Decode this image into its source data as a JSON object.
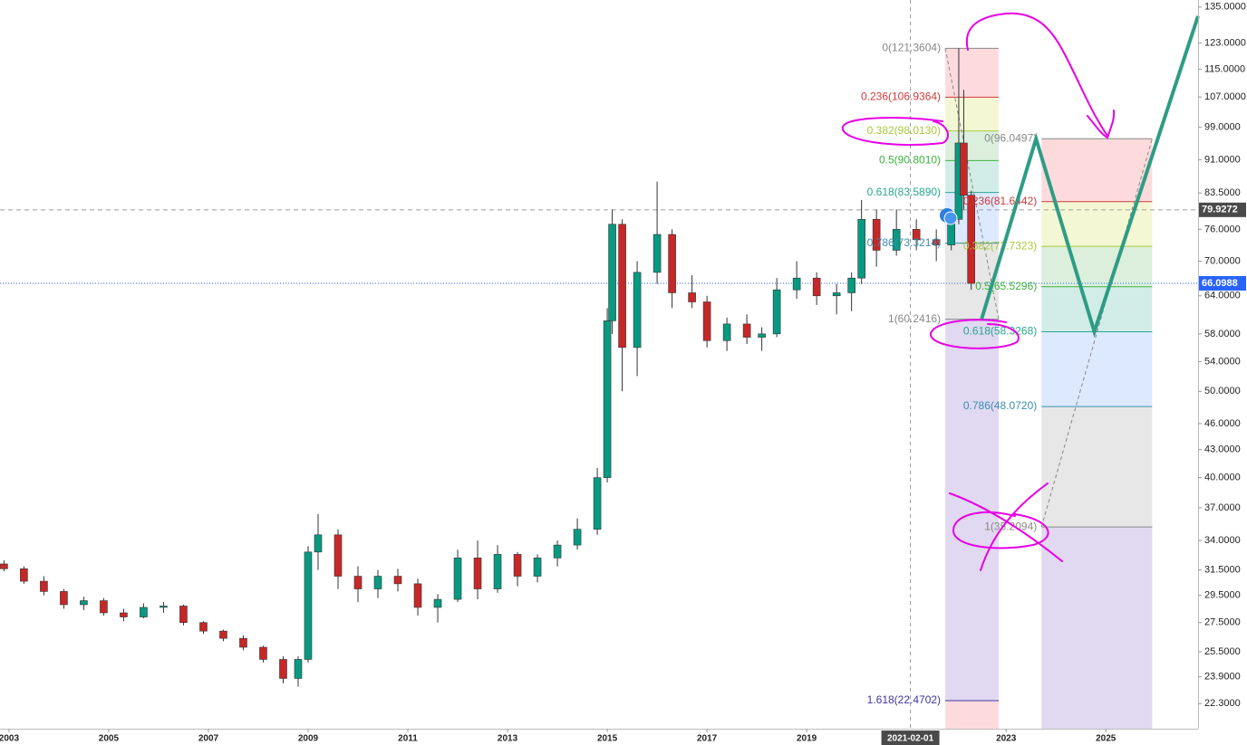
{
  "chart_data": {
    "type": "candlestick",
    "log_scale": true,
    "xlim": [
      2002.82,
      2026.85
    ],
    "ylim": [
      20.9,
      137.5
    ],
    "xticks": [
      2003,
      2005,
      2007,
      2009,
      2011,
      2013,
      2015,
      2017,
      2019,
      2023,
      2025
    ],
    "yticks": [
      {
        "value": 135,
        "label": "135.0000"
      },
      {
        "value": 123,
        "label": "123.0000"
      },
      {
        "value": 115,
        "label": "115.0000"
      },
      {
        "value": 107,
        "label": "107.0000"
      },
      {
        "value": 99,
        "label": "99.0000"
      },
      {
        "value": 91,
        "label": "91.0000"
      },
      {
        "value": 83.5,
        "label": "83.5000"
      },
      {
        "value": 76,
        "label": "76.0000"
      },
      {
        "value": 70,
        "label": "70.0000"
      },
      {
        "value": 64,
        "label": "64.0000"
      },
      {
        "value": 58,
        "label": "58.0000"
      },
      {
        "value": 54,
        "label": "54.0000"
      },
      {
        "value": 50,
        "label": "50.0000"
      },
      {
        "value": 46,
        "label": "46.0000"
      },
      {
        "value": 43,
        "label": "43.0000"
      },
      {
        "value": 40,
        "label": "40.0000"
      },
      {
        "value": 37,
        "label": "37.0000"
      },
      {
        "value": 34,
        "label": "34.0000"
      },
      {
        "value": 31.5,
        "label": "31.5000"
      },
      {
        "value": 29.5,
        "label": "29.5000"
      },
      {
        "value": 27.5,
        "label": "27.5000"
      },
      {
        "value": 25.5,
        "label": "25.5000"
      },
      {
        "value": 23.9,
        "label": "23.9000"
      },
      {
        "value": 22.3,
        "label": "22.3000"
      }
    ],
    "crosshair_x": {
      "value": 2021.08,
      "label": "2021-02-01"
    },
    "up_color": "#089981",
    "down_color": "#c62828",
    "candles": {
      "x": [
        2002.9,
        2003.3,
        2003.7,
        2004.1,
        2004.5,
        2004.9,
        2005.3,
        2005.7,
        2006.1,
        2006.5,
        2006.9,
        2007.3,
        2007.7,
        2008.1,
        2008.5,
        2008.8,
        2009.0,
        2009.2,
        2009.6,
        2010.0,
        2010.4,
        2010.8,
        2011.2,
        2011.6,
        2012.0,
        2012.4,
        2012.8,
        2013.2,
        2013.6,
        2014.0,
        2014.4,
        2014.8,
        2015.0,
        2015.1,
        2015.3,
        2015.6,
        2016.0,
        2016.3,
        2016.7,
        2017.0,
        2017.4,
        2017.8,
        2018.1,
        2018.4,
        2018.8,
        2019.2,
        2019.6,
        2019.9,
        2020.1,
        2020.4,
        2020.8,
        2021.2,
        2021.6,
        2021.9,
        2022.05,
        2022.15,
        2022.3
      ],
      "open": [
        32.0,
        31.6,
        30.6,
        29.8,
        28.8,
        29.1,
        28.2,
        27.9,
        28.6,
        28.7,
        27.5,
        26.9,
        26.4,
        25.8,
        25.0,
        23.8,
        25.0,
        33.0,
        34.5,
        31.0,
        30.0,
        31.0,
        30.4,
        28.6,
        29.2,
        32.5,
        30.0,
        32.8,
        31.0,
        32.5,
        33.6,
        35.0,
        40.0,
        60.0,
        77.0,
        56.0,
        68.0,
        75.0,
        64.5,
        63.0,
        57.0,
        59.5,
        57.5,
        58.0,
        65.0,
        67.0,
        64.0,
        64.5,
        67.0,
        78.0,
        72.0,
        76.0,
        74.0,
        73.0,
        78.0,
        95.0,
        83.0
      ],
      "high": [
        32.3,
        31.8,
        31.0,
        30.0,
        29.4,
        29.3,
        28.5,
        28.9,
        29.0,
        28.8,
        27.6,
        27.0,
        26.6,
        25.9,
        25.2,
        25.2,
        33.5,
        36.4,
        35.0,
        31.8,
        31.5,
        31.6,
        30.8,
        29.6,
        33.2,
        34.0,
        33.6,
        33.0,
        32.8,
        34.0,
        36.0,
        41.0,
        62.0,
        80.0,
        78.0,
        70.0,
        86.0,
        76.0,
        67.5,
        64.0,
        60.5,
        61.0,
        59.0,
        67.0,
        70.0,
        68.0,
        66.0,
        68.0,
        82.0,
        80.0,
        80.0,
        78.0,
        76.0,
        80.0,
        121.36,
        109.0,
        84.0
      ],
      "low": [
        31.4,
        30.4,
        29.5,
        28.5,
        28.4,
        28.0,
        27.6,
        27.8,
        28.2,
        27.3,
        26.7,
        26.2,
        25.6,
        24.8,
        23.5,
        23.3,
        24.8,
        31.5,
        30.0,
        29.0,
        29.3,
        29.8,
        28.0,
        27.5,
        29.0,
        29.2,
        29.7,
        30.2,
        30.5,
        31.8,
        33.2,
        34.5,
        39.5,
        58.0,
        50.0,
        52.0,
        66.0,
        62.0,
        62.0,
        56.0,
        55.5,
        56.5,
        55.5,
        57.5,
        63.5,
        62.5,
        61.0,
        61.5,
        66.0,
        69.0,
        71.0,
        72.0,
        70.0,
        72.0,
        77.0,
        80.0,
        65.0
      ],
      "close": [
        31.6,
        30.6,
        29.8,
        28.8,
        29.1,
        28.2,
        27.9,
        28.6,
        28.7,
        27.5,
        26.9,
        26.4,
        25.8,
        25.0,
        23.8,
        25.0,
        33.0,
        34.5,
        31.0,
        30.0,
        31.0,
        30.4,
        28.6,
        29.2,
        32.5,
        30.0,
        32.8,
        31.0,
        32.5,
        33.6,
        35.0,
        40.0,
        60.0,
        77.0,
        56.0,
        68.0,
        75.0,
        64.5,
        63.0,
        57.0,
        59.5,
        57.5,
        58.0,
        65.0,
        67.0,
        64.0,
        64.5,
        67.0,
        78.0,
        72.0,
        76.0,
        74.0,
        73.0,
        78.0,
        95.0,
        83.0,
        66.1
      ]
    },
    "price_lines": [
      {
        "value": 79.9272,
        "color": "#9e9e9e",
        "label_color": "#4a4a4a"
      },
      {
        "value": 66.0988,
        "color": "#2962ff",
        "label_color": "#2962ff"
      }
    ],
    "fibs": [
      {
        "x_range": [
          2021.78,
          2022.85
        ],
        "levels": [
          {
            "label": "0(121.3604)",
            "value": 121.3604,
            "color": "#888888",
            "fill": "rgba(242,54,69,0.18)"
          },
          {
            "label": "0.236(106.9364)",
            "value": 106.9364,
            "color": "#d03a3a",
            "fill": "rgba(205,220,57,0.22)"
          },
          {
            "label": "0.382(98.0130)",
            "value": 98.013,
            "color": "#a8c93a",
            "fill": "rgba(76,175,80,0.2)"
          },
          {
            "label": "0.5(90.8010)",
            "value": 90.801,
            "color": "#3cb43c",
            "fill": "rgba(8,153,129,0.18)"
          },
          {
            "label": "0.618(83.5890)",
            "value": 83.589,
            "color": "#2aa791",
            "fill": "rgba(41,121,255,0.16)"
          },
          {
            "label": "0.786(73.3214)",
            "value": 73.3214,
            "color": "#3a8fb0",
            "fill": "rgba(120,120,120,0.18)"
          },
          {
            "label": "1(60.2416)",
            "value": 60.2416,
            "color": "#888888",
            "fill": "rgba(103,58,183,0.2)"
          },
          {
            "label": "1.618(22.4702)",
            "value": 22.4702,
            "color": "#3d35a8",
            "fill": "rgba(242,54,69,0.18)"
          }
        ]
      },
      {
        "x_range": [
          2023.71,
          2025.93
        ],
        "levels": [
          {
            "label": "0(96.0497)",
            "value": 96.0497,
            "color": "#888888",
            "fill": "rgba(242,54,69,0.18)"
          },
          {
            "label": "0.236(81.6442)",
            "value": 81.6442,
            "color": "#d03a3a",
            "fill": "rgba(205,220,57,0.22)"
          },
          {
            "label": "0.382(72.7323)",
            "value": 72.7323,
            "color": "#a8c93a",
            "fill": "rgba(76,175,80,0.2)"
          },
          {
            "label": "0.5(65.5296)",
            "value": 65.5296,
            "color": "#3cb43c",
            "fill": "rgba(8,153,129,0.18)"
          },
          {
            "label": "0.618(58.3268)",
            "value": 58.3268,
            "color": "#2aa791",
            "fill": "rgba(41,121,255,0.16)"
          },
          {
            "label": "0.786(48.0720)",
            "value": 48.072,
            "color": "#3a8fb0",
            "fill": "rgba(120,120,120,0.18)"
          },
          {
            "label": "1(35.2094)",
            "value": 35.2094,
            "color": "#888888",
            "fill": "rgba(103,58,183,0.2)"
          }
        ]
      }
    ],
    "projection": {
      "x": [
        2022.51,
        2023.6,
        2024.77,
        2026.85
      ],
      "values": [
        60.3,
        96.05,
        58.33,
        131.9
      ],
      "color": "#2e9c84"
    }
  }
}
